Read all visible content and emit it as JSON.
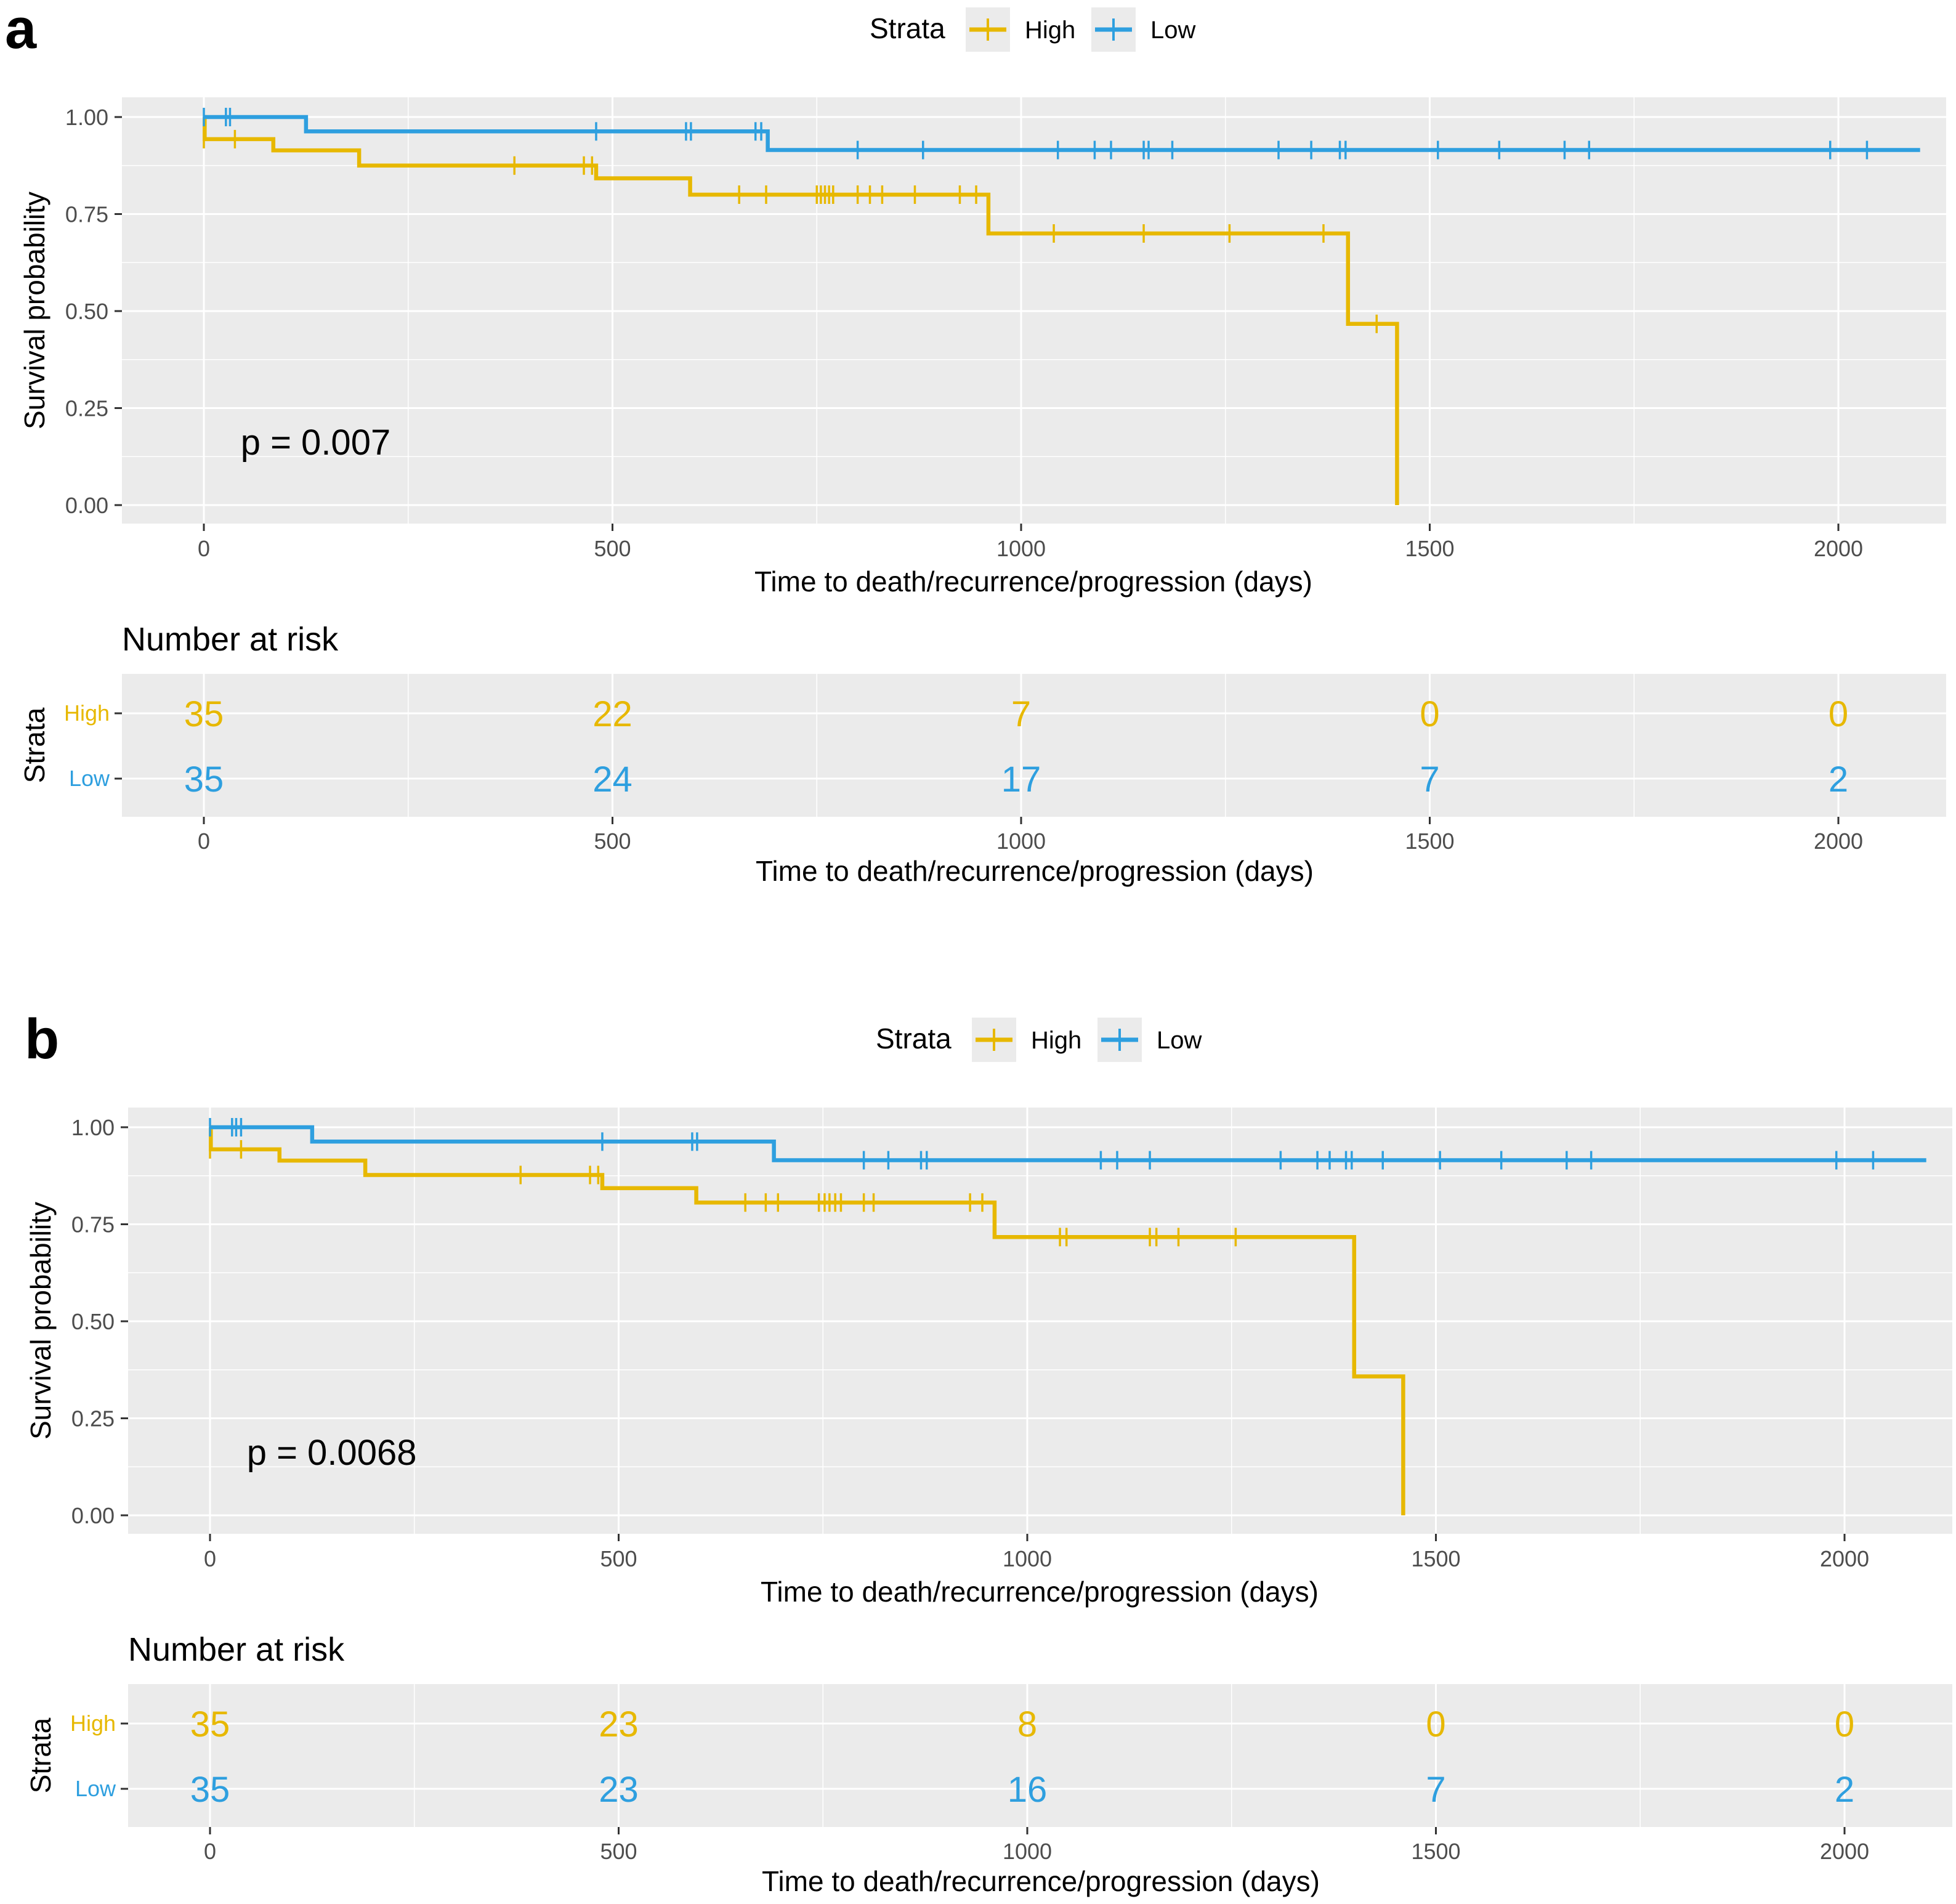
{
  "colors": {
    "high": "#E7B800",
    "low": "#2E9FDF",
    "panel": "#EBEBEB",
    "grid": "#FFFFFF",
    "axis_text": "#4D4D4D",
    "text": "#000000"
  },
  "chart_data": [
    {
      "type": "line",
      "panel_label": "a",
      "legend": {
        "title": "Strata",
        "entries": [
          "High",
          "Low"
        ],
        "placement": "top"
      },
      "xlabel": "Time to death/recurrence/progression (days)",
      "ylabel": "Survival probability",
      "xlim": [
        -100,
        2100
      ],
      "ylim": [
        0,
        1
      ],
      "xticks": [
        0,
        500,
        1000,
        1500,
        2000
      ],
      "xtick_labels": [
        "0",
        "500",
        "1000",
        "1500",
        "2000"
      ],
      "yticks": [
        0,
        0.25,
        0.5,
        0.75,
        1
      ],
      "ytick_labels": [
        "0.00",
        "0.25",
        "0.50",
        "0.75",
        "1.00"
      ],
      "pvalue": "p = 0.007",
      "series": [
        {
          "name": "High",
          "color_key": "high",
          "steps": [
            [
              0,
              1.0
            ],
            [
              1,
              0.943
            ],
            [
              85,
              0.914
            ],
            [
              190,
              0.875
            ],
            [
              480,
              0.842
            ],
            [
              595,
              0.8
            ],
            [
              960,
              0.7
            ],
            [
              1400,
              0.467
            ],
            [
              1460,
              0.0
            ]
          ],
          "censor": [
            [
              0,
              0.943
            ],
            [
              38,
              0.943
            ],
            [
              380,
              0.875
            ],
            [
              465,
              0.875
            ],
            [
              475,
              0.875
            ],
            [
              655,
              0.8
            ],
            [
              688,
              0.8
            ],
            [
              750,
              0.8
            ],
            [
              755,
              0.8
            ],
            [
              760,
              0.8
            ],
            [
              765,
              0.8
            ],
            [
              770,
              0.8
            ],
            [
              800,
              0.8
            ],
            [
              815,
              0.8
            ],
            [
              830,
              0.8
            ],
            [
              870,
              0.8
            ],
            [
              925,
              0.8
            ],
            [
              945,
              0.8
            ],
            [
              1040,
              0.7
            ],
            [
              1150,
              0.7
            ],
            [
              1255,
              0.7
            ],
            [
              1370,
              0.7
            ],
            [
              1435,
              0.467
            ]
          ]
        },
        {
          "name": "Low",
          "color_key": "low",
          "steps": [
            [
              0,
              1.0
            ],
            [
              125,
              0.963
            ],
            [
              690,
              0.915
            ],
            [
              2100,
              0.915
            ]
          ],
          "censor": [
            [
              0,
              1.0
            ],
            [
              27,
              1.0
            ],
            [
              32,
              1.0
            ],
            [
              480,
              0.963
            ],
            [
              590,
              0.963
            ],
            [
              596,
              0.963
            ],
            [
              675,
              0.963
            ],
            [
              682,
              0.963
            ],
            [
              800,
              0.915
            ],
            [
              880,
              0.915
            ],
            [
              1045,
              0.915
            ],
            [
              1090,
              0.915
            ],
            [
              1110,
              0.915
            ],
            [
              1150,
              0.915
            ],
            [
              1156,
              0.915
            ],
            [
              1185,
              0.915
            ],
            [
              1315,
              0.915
            ],
            [
              1355,
              0.915
            ],
            [
              1390,
              0.915
            ],
            [
              1397,
              0.915
            ],
            [
              1510,
              0.915
            ],
            [
              1585,
              0.915
            ],
            [
              1665,
              0.915
            ],
            [
              1695,
              0.915
            ],
            [
              1990,
              0.915
            ],
            [
              2035,
              0.915
            ]
          ]
        }
      ],
      "risk_table": {
        "title": "Number at risk",
        "ylabel": "Strata",
        "xlabel": "Time to death/recurrence/progression (days)",
        "times": [
          0,
          500,
          1000,
          1500,
          2000
        ],
        "xtick_labels": [
          "0",
          "500",
          "1000",
          "1500",
          "2000"
        ],
        "rows": [
          {
            "name": "High",
            "color_key": "high",
            "values": [
              "35",
              "22",
              "7",
              "0",
              "0"
            ]
          },
          {
            "name": "Low",
            "color_key": "low",
            "values": [
              "35",
              "24",
              "17",
              "7",
              "2"
            ]
          }
        ]
      }
    },
    {
      "type": "line",
      "panel_label": "b",
      "legend": {
        "title": "Strata",
        "entries": [
          "High",
          "Low"
        ],
        "placement": "top"
      },
      "xlabel": "Time to death/recurrence/progression (days)",
      "ylabel": "Survival probability",
      "xlim": [
        -100,
        2100
      ],
      "ylim": [
        0,
        1
      ],
      "xticks": [
        0,
        500,
        1000,
        1500,
        2000
      ],
      "xtick_labels": [
        "0",
        "500",
        "1000",
        "1500",
        "2000"
      ],
      "yticks": [
        0,
        0.25,
        0.5,
        0.75,
        1
      ],
      "ytick_labels": [
        "0.00",
        "0.25",
        "0.50",
        "0.75",
        "1.00"
      ],
      "pvalue": "p = 0.0068",
      "series": [
        {
          "name": "High",
          "color_key": "high",
          "steps": [
            [
              0,
              1.0
            ],
            [
              1,
              0.943
            ],
            [
              85,
              0.914
            ],
            [
              190,
              0.877
            ],
            [
              480,
              0.843
            ],
            [
              595,
              0.806
            ],
            [
              960,
              0.717
            ],
            [
              1400,
              0.358
            ],
            [
              1460,
              0.0
            ]
          ],
          "censor": [
            [
              0,
              0.943
            ],
            [
              38,
              0.943
            ],
            [
              380,
              0.877
            ],
            [
              465,
              0.877
            ],
            [
              475,
              0.877
            ],
            [
              655,
              0.806
            ],
            [
              680,
              0.806
            ],
            [
              695,
              0.806
            ],
            [
              745,
              0.806
            ],
            [
              752,
              0.806
            ],
            [
              758,
              0.806
            ],
            [
              765,
              0.806
            ],
            [
              772,
              0.806
            ],
            [
              800,
              0.806
            ],
            [
              812,
              0.806
            ],
            [
              930,
              0.806
            ],
            [
              945,
              0.806
            ],
            [
              1040,
              0.717
            ],
            [
              1048,
              0.717
            ],
            [
              1150,
              0.717
            ],
            [
              1158,
              0.717
            ],
            [
              1185,
              0.717
            ],
            [
              1255,
              0.717
            ]
          ]
        },
        {
          "name": "Low",
          "color_key": "low",
          "steps": [
            [
              0,
              1.0
            ],
            [
              125,
              0.963
            ],
            [
              690,
              0.915
            ],
            [
              2100,
              0.915
            ]
          ],
          "censor": [
            [
              0,
              1.0
            ],
            [
              27,
              1.0
            ],
            [
              32,
              1.0
            ],
            [
              38,
              1.0
            ],
            [
              480,
              0.963
            ],
            [
              590,
              0.963
            ],
            [
              596,
              0.963
            ],
            [
              800,
              0.915
            ],
            [
              830,
              0.915
            ],
            [
              870,
              0.915
            ],
            [
              877,
              0.915
            ],
            [
              1090,
              0.915
            ],
            [
              1110,
              0.915
            ],
            [
              1150,
              0.915
            ],
            [
              1310,
              0.915
            ],
            [
              1355,
              0.915
            ],
            [
              1370,
              0.915
            ],
            [
              1390,
              0.915
            ],
            [
              1397,
              0.915
            ],
            [
              1435,
              0.915
            ],
            [
              1505,
              0.915
            ],
            [
              1580,
              0.915
            ],
            [
              1660,
              0.915
            ],
            [
              1690,
              0.915
            ],
            [
              1990,
              0.915
            ],
            [
              2035,
              0.915
            ]
          ]
        }
      ],
      "risk_table": {
        "title": "Number at risk",
        "ylabel": "Strata",
        "xlabel": "Time to death/recurrence/progression (days)",
        "times": [
          0,
          500,
          1000,
          1500,
          2000
        ],
        "xtick_labels": [
          "0",
          "500",
          "1000",
          "1500",
          "2000"
        ],
        "rows": [
          {
            "name": "High",
            "color_key": "high",
            "values": [
              "35",
              "23",
              "8",
              "0",
              "0"
            ]
          },
          {
            "name": "Low",
            "color_key": "low",
            "values": [
              "35",
              "23",
              "16",
              "7",
              "2"
            ]
          }
        ]
      }
    }
  ]
}
